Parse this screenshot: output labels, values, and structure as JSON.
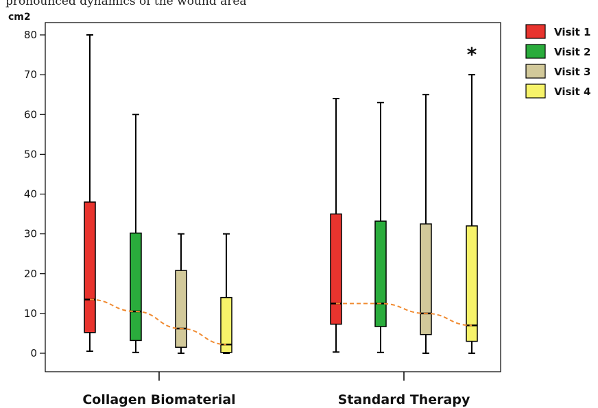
{
  "top_text": "pronounced dynamics of the wound area",
  "chart_data": {
    "type": "box",
    "ylabel": "cm2",
    "ylim": [
      -5,
      83
    ],
    "yticks": [
      0,
      10,
      20,
      30,
      40,
      50,
      60,
      70,
      80
    ],
    "categories": [
      "Collagen Biomaterial",
      "Standard Therapy"
    ],
    "series": [
      {
        "name": "Visit 1",
        "color": "#e8342e",
        "boxes": [
          {
            "min": 0.5,
            "q1": 5.2,
            "median": 13.5,
            "q3": 38,
            "max": 80
          },
          {
            "min": 0.3,
            "q1": 7.3,
            "median": 12.5,
            "q3": 35,
            "max": 64
          }
        ]
      },
      {
        "name": "Visit 2",
        "color": "#2aac3c",
        "boxes": [
          {
            "min": 0.2,
            "q1": 3.2,
            "median": 10.5,
            "q3": 30.2,
            "max": 60
          },
          {
            "min": 0.2,
            "q1": 6.7,
            "median": 12.5,
            "q3": 33.2,
            "max": 63
          }
        ]
      },
      {
        "name": "Visit 3",
        "color": "#d2c99a",
        "boxes": [
          {
            "min": 0.0,
            "q1": 1.5,
            "median": 6.2,
            "q3": 20.8,
            "max": 30
          },
          {
            "min": 0.0,
            "q1": 4.7,
            "median": 10.0,
            "q3": 32.5,
            "max": 65
          }
        ]
      },
      {
        "name": "Visit 4",
        "color": "#f7f36a",
        "boxes": [
          {
            "min": 0.0,
            "q1": 0.2,
            "median": 2.2,
            "q3": 14.0,
            "max": 30
          },
          {
            "min": 0.0,
            "q1": 3.0,
            "median": 7.0,
            "q3": 32.0,
            "max": 70
          }
        ]
      }
    ],
    "trend_line_color": "#f08a30",
    "annotation": {
      "text": "*",
      "category": "Standard Therapy",
      "series": "Visit 4"
    },
    "legend_position": "right",
    "grid": false
  }
}
